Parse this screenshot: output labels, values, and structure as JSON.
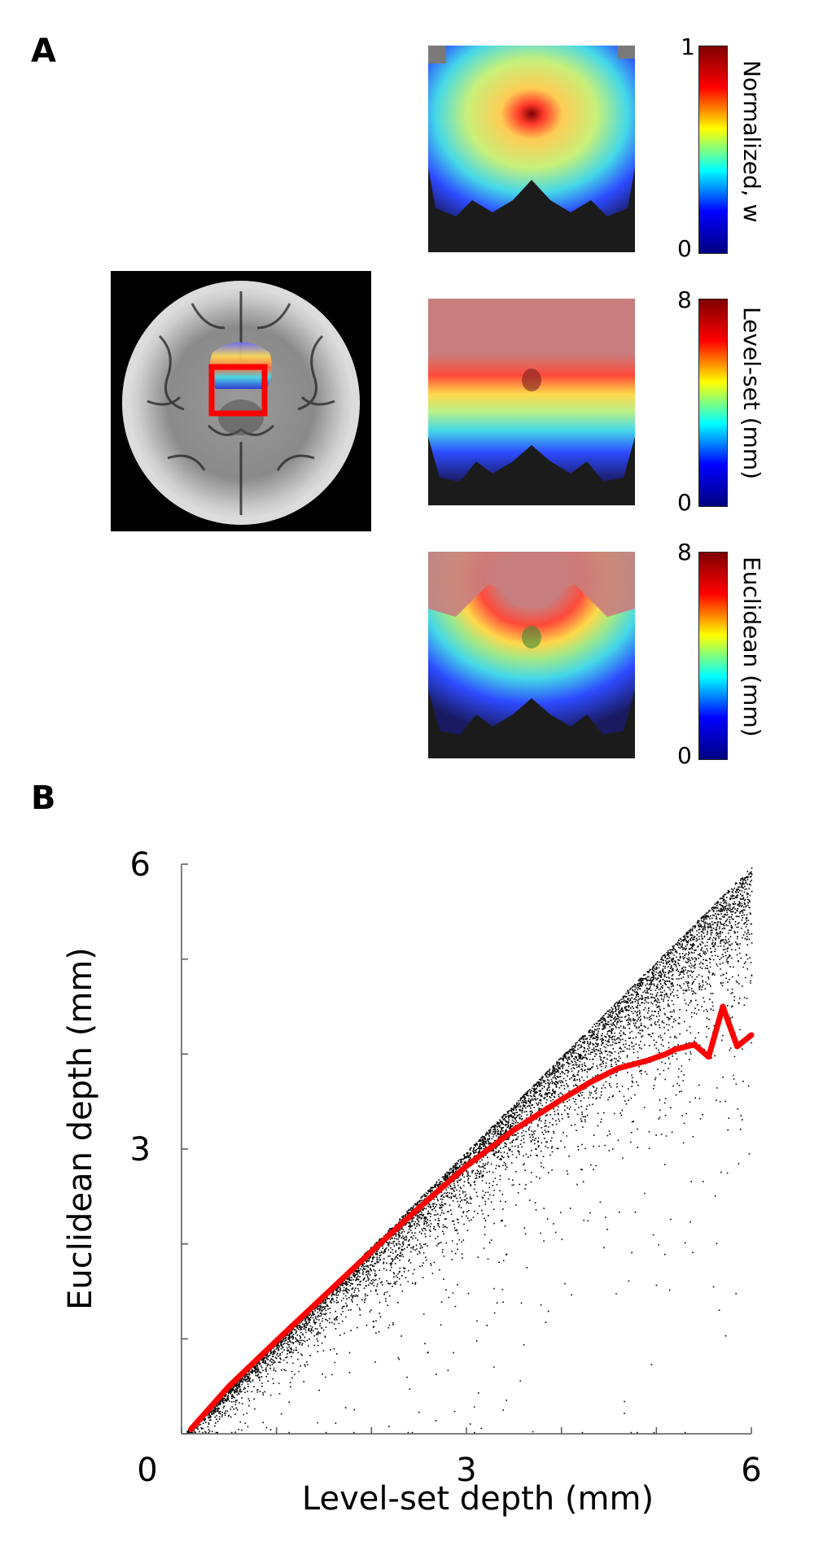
{
  "panel_a": {
    "letter": "A",
    "maps": [
      {
        "id": "weights",
        "cbar_min": "0",
        "cbar_max": "1",
        "cbar_label": "Normalized, w"
      },
      {
        "id": "levelset",
        "cbar_min": "0",
        "cbar_max": "8",
        "cbar_label": "Level-set (mm)"
      },
      {
        "id": "euclidean",
        "cbar_min": "0",
        "cbar_max": "8",
        "cbar_label": "Euclidean (mm)"
      }
    ],
    "colors": {
      "highlight_box": "#ff0000",
      "jet": [
        "#00007f",
        "#0000ff",
        "#00ffff",
        "#ffff00",
        "#ff0000",
        "#7f0000"
      ]
    }
  },
  "panel_b": {
    "letter": "B"
  },
  "chart_data": {
    "type": "scatter",
    "title": "",
    "xlabel": "Level-set depth (mm)",
    "ylabel": "Euclidean depth (mm)",
    "xlim": [
      0,
      6
    ],
    "ylim": [
      0,
      6
    ],
    "x_tick_labels": [
      "0",
      "3",
      "6"
    ],
    "y_tick_labels": [
      "0",
      "3",
      "6"
    ],
    "grid": false,
    "series": [
      {
        "kind": "points",
        "color": "#000000",
        "description_points": "dense cloud bounded above by y = x, fanning downward with increasing x"
      },
      {
        "kind": "line",
        "color": "#ff0000",
        "x": [
          0.1,
          0.5,
          1.0,
          1.5,
          2.0,
          2.5,
          3.0,
          3.5,
          4.0,
          4.3,
          4.6,
          4.9,
          5.1,
          5.2,
          5.4,
          5.55,
          5.7,
          5.85,
          6.0
        ],
        "y": [
          0.05,
          0.5,
          0.98,
          1.45,
          1.92,
          2.38,
          2.82,
          3.2,
          3.52,
          3.7,
          3.85,
          3.93,
          4.0,
          4.05,
          4.1,
          3.97,
          4.5,
          4.08,
          4.2
        ]
      }
    ]
  }
}
